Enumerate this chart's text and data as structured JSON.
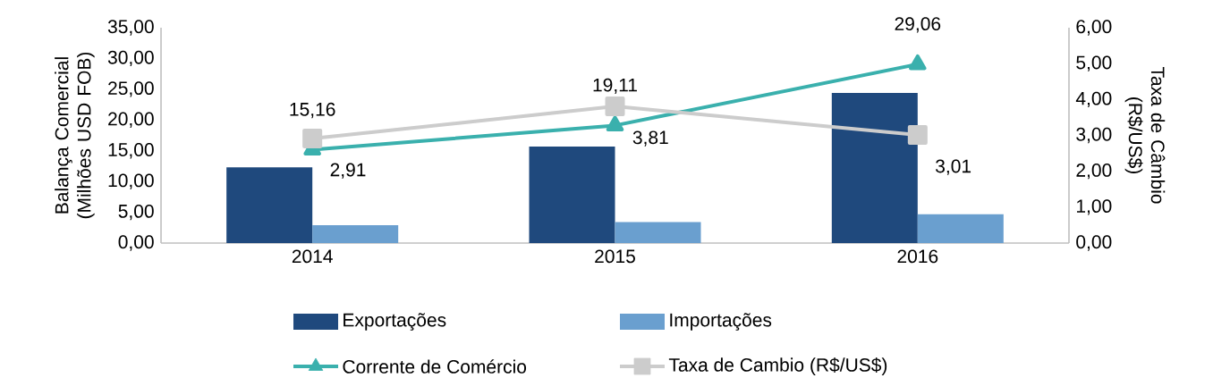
{
  "chart_data": {
    "type": "bar",
    "categories": [
      "2014",
      "2015",
      "2016"
    ],
    "ylabel": "Balança Comercial (Milhões USD FOB)",
    "y2label": "Taxa de Câmbio (R$/US$)",
    "ylim": [
      0,
      35
    ],
    "yticks": [
      {
        "value": 0,
        "label": "0,00"
      },
      {
        "value": 5,
        "label": "5,00"
      },
      {
        "value": 10,
        "label": "10,00"
      },
      {
        "value": 15,
        "label": "15,00"
      },
      {
        "value": 20,
        "label": "20,00"
      },
      {
        "value": 25,
        "label": "25,00"
      },
      {
        "value": 30,
        "label": "30,00"
      },
      {
        "value": 35,
        "label": "35,00"
      }
    ],
    "y2lim": [
      0,
      6
    ],
    "y2ticks": [
      {
        "value": 0,
        "label": "0,00"
      },
      {
        "value": 1,
        "label": "1,00"
      },
      {
        "value": 2,
        "label": "2,00"
      },
      {
        "value": 3,
        "label": "3,00"
      },
      {
        "value": 4,
        "label": "4,00"
      },
      {
        "value": 5,
        "label": "5,00"
      },
      {
        "value": 6,
        "label": "6,00"
      }
    ],
    "series": [
      {
        "name": "Exportações",
        "color": "#1f497d",
        "values": [
          12.3,
          15.7,
          24.4
        ]
      },
      {
        "name": "Importações",
        "color": "#6a9fcf",
        "values": [
          2.9,
          3.4,
          4.7
        ]
      },
      {
        "name": "Corrente de Comércio",
        "type": "line",
        "color": "#3ab0ad",
        "marker": "triangle",
        "values": [
          15.16,
          19.11,
          29.06
        ],
        "value_labels": [
          "15,16",
          "19,11",
          "29,06"
        ]
      },
      {
        "name": "Taxa de Cambio (R$/US$)",
        "type": "line",
        "axis": "y2",
        "color": "#cccccc",
        "marker": "square",
        "values": [
          2.91,
          3.81,
          3.01
        ],
        "value_labels": [
          "2,91",
          "3,81",
          "3,01"
        ]
      }
    ],
    "grid": false,
    "legend": "bottom"
  }
}
